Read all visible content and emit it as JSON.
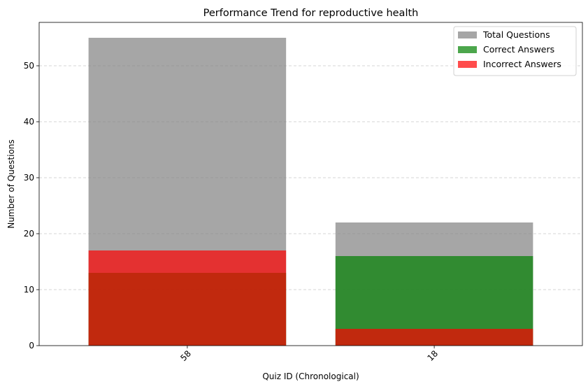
{
  "chart_data": {
    "type": "bar",
    "title": "Performance Trend for reproductive health",
    "xlabel": "Quiz ID (Chronological)",
    "ylabel": "Number of Questions",
    "categories": [
      "58",
      "18"
    ],
    "ylim": [
      0,
      57.75
    ],
    "yticks": [
      0,
      10,
      20,
      30,
      40,
      50
    ],
    "grid": "y-dashed",
    "legend_position": "top-right",
    "x_tick_rotation": 45,
    "series": [
      {
        "name": "Total Questions",
        "values": [
          55,
          22
        ],
        "color": "#808080",
        "alpha": 0.7
      },
      {
        "name": "Correct Answers",
        "values": [
          13,
          16
        ],
        "color": "#008000",
        "alpha": 0.7
      },
      {
        "name": "Incorrect Answers",
        "values": [
          17,
          3
        ],
        "color": "#ff0000",
        "alpha": 0.7
      }
    ]
  }
}
